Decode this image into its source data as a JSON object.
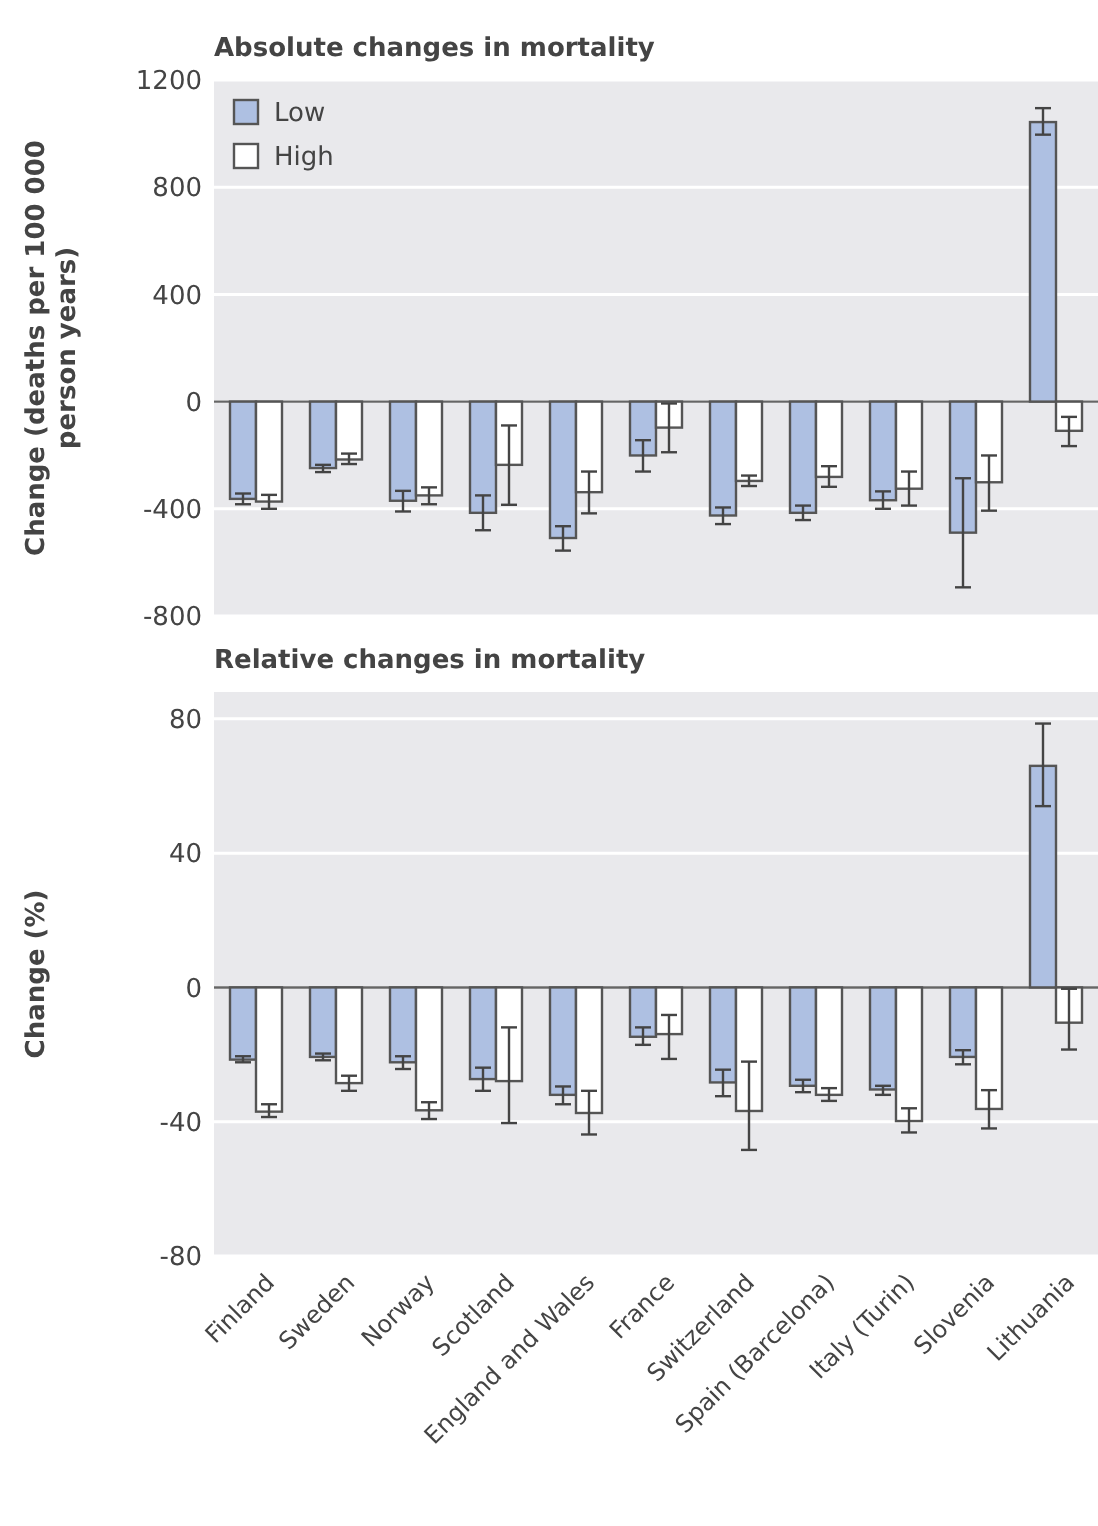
{
  "chart_data": [
    {
      "type": "bar",
      "title": "Absolute changes in mortality",
      "ylabel": "Change (deaths per 100 000 person years)",
      "categories": [
        null,
        null,
        null,
        null,
        null,
        null,
        null,
        null,
        null,
        null,
        null
      ],
      "series": [
        {
          "name": "Low",
          "color": "#aec0e2",
          "values": [
            -363,
            -248,
            -370,
            -415,
            -509,
            -201,
            -425,
            -415,
            -368,
            -489,
            1043
          ],
          "errors": [
            [
              -383,
              -343
            ],
            [
              -263,
              -236
            ],
            [
              -410,
              -333
            ],
            [
              -480,
              -350
            ],
            [
              -556,
              -465
            ],
            [
              -261,
              -144
            ],
            [
              -457,
              -395
            ],
            [
              -442,
              -388
            ],
            [
              -400,
              -335
            ],
            [
              -693,
              -286
            ],
            [
              996,
              1095
            ]
          ]
        },
        {
          "name": "High",
          "color": "#ffffff",
          "values": [
            -373,
            -216,
            -350,
            -236,
            -338,
            -97,
            -296,
            -281,
            -325,
            -301,
            -109
          ],
          "errors": [
            [
              -400,
              -348
            ],
            [
              -233,
              -194
            ],
            [
              -383,
              -320
            ],
            [
              -385,
              -89
            ],
            [
              -417,
              -261
            ],
            [
              -189,
              -7
            ],
            [
              -315,
              -276
            ],
            [
              -318,
              -241
            ],
            [
              -388,
              -261
            ],
            [
              -407,
              -201
            ],
            [
              -166,
              -57
            ]
          ]
        }
      ],
      "ylim": [
        -800,
        1200
      ],
      "yticks": [
        -800,
        -400,
        0,
        400,
        800,
        1200
      ],
      "grid": "y",
      "legend": "top left",
      "tick_labels": "y"
    },
    {
      "type": "bar",
      "title": "Relative changes in mortality",
      "ylabel": "Change (%)",
      "categories": [
        "Finland",
        "Sweden",
        "Norway",
        "Scotland",
        "England and Wales",
        "France",
        "Switzerland",
        "Spain (Barcelona)",
        "Italy (Turin)",
        "Slovenia",
        "Lithuania"
      ],
      "series": [
        {
          "color": "#aec0e2",
          "values": [
            -21.5,
            -20.7,
            -22.3,
            -27.3,
            -32,
            -14.7,
            -28.3,
            -29.3,
            -30.4,
            -20.7,
            66
          ],
          "errors": [
            [
              -22.3,
              -20.5
            ],
            [
              -21.7,
              -19.7
            ],
            [
              -24.3,
              -20.5
            ],
            [
              -30.8,
              -23.9
            ],
            [
              -34.8,
              -29.5
            ],
            [
              -17.1,
              -11.9
            ],
            [
              -32.4,
              -24.5
            ],
            [
              -31.2,
              -27.5
            ],
            [
              -32,
              -29.3
            ],
            [
              -22.9,
              -18.7
            ],
            [
              54,
              78.6
            ]
          ]
        },
        {
          "color": "#ffffff",
          "values": [
            -37,
            -28.5,
            -36.6,
            -27.9,
            -37.4,
            -13.9,
            -36.8,
            -32,
            -39.8,
            -36.2,
            -10.5
          ],
          "errors": [
            [
              -38.6,
              -34.8
            ],
            [
              -30.8,
              -26.3
            ],
            [
              -39.2,
              -34.2
            ],
            [
              -40.4,
              -11.9
            ],
            [
              -43.8,
              -30.8
            ],
            [
              -21.3,
              -8.2
            ],
            [
              -48.4,
              -22.1
            ],
            [
              -33.8,
              -30
            ],
            [
              -43.2,
              -36
            ],
            [
              -42,
              -30.6
            ],
            [
              -18.5,
              -0.4
            ]
          ]
        }
      ],
      "ylim": [
        -80,
        88
      ],
      "yticks": [
        -80,
        -40,
        0,
        40,
        80
      ],
      "grid": "y"
    }
  ]
}
